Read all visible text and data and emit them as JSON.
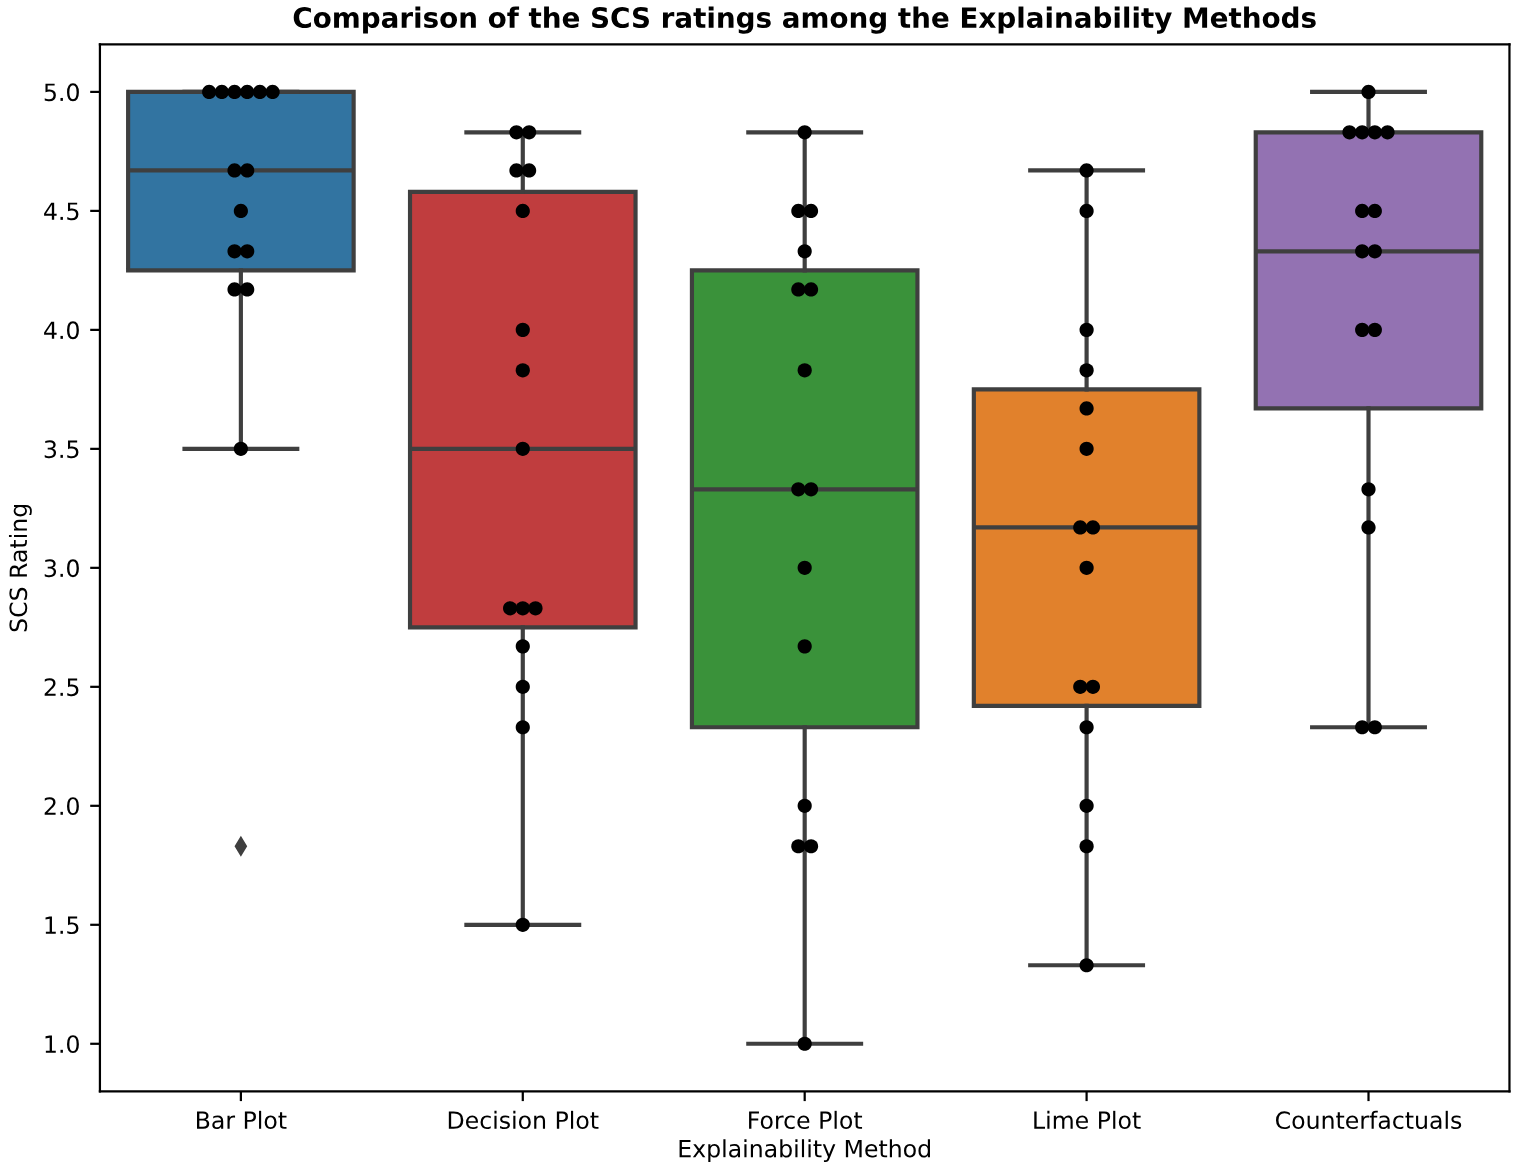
{
  "chart_data": {
    "type": "box",
    "title": "Comparison of the SCS ratings among the Explainability Methods",
    "xlabel": "Explainability Method",
    "ylabel": "SCS Rating",
    "categories": [
      "Bar Plot",
      "Decision Plot",
      "Force Plot",
      "Lime Plot",
      "Counterfactuals"
    ],
    "colors": [
      "#3274a1",
      "#c03d3e",
      "#3a923a",
      "#e1812c",
      "#9372b2"
    ],
    "boxes": [
      {
        "low": 3.5,
        "q1": 4.25,
        "median": 4.67,
        "q3": 5.0,
        "high": 5.0,
        "outliers": [
          1.83
        ]
      },
      {
        "low": 1.5,
        "q1": 2.75,
        "median": 3.5,
        "q3": 4.58,
        "high": 4.83
      },
      {
        "low": 1.0,
        "q1": 2.33,
        "median": 3.33,
        "q3": 4.25,
        "high": 4.83
      },
      {
        "low": 1.33,
        "q1": 2.42,
        "median": 3.17,
        "q3": 3.75,
        "high": 4.67
      },
      {
        "low": 2.33,
        "q1": 3.67,
        "median": 4.33,
        "q3": 4.83,
        "high": 5.0
      }
    ],
    "series": [
      {
        "type": "scatter",
        "color": "#000000",
        "x": [
          "Bar Plot",
          "Bar Plot",
          "Bar Plot",
          "Bar Plot",
          "Bar Plot",
          "Bar Plot",
          "Bar Plot",
          "Bar Plot",
          "Bar Plot",
          "Bar Plot",
          "Bar Plot",
          "Bar Plot",
          "Bar Plot",
          "Bar Plot",
          "Decision Plot",
          "Decision Plot",
          "Decision Plot",
          "Decision Plot",
          "Decision Plot",
          "Decision Plot",
          "Decision Plot",
          "Decision Plot",
          "Decision Plot",
          "Decision Plot",
          "Decision Plot",
          "Decision Plot",
          "Decision Plot",
          "Decision Plot",
          "Decision Plot",
          "Force Plot",
          "Force Plot",
          "Force Plot",
          "Force Plot",
          "Force Plot",
          "Force Plot",
          "Force Plot",
          "Force Plot",
          "Force Plot",
          "Force Plot",
          "Force Plot",
          "Force Plot",
          "Force Plot",
          "Force Plot",
          "Force Plot",
          "Lime Plot",
          "Lime Plot",
          "Lime Plot",
          "Lime Plot",
          "Lime Plot",
          "Lime Plot",
          "Lime Plot",
          "Lime Plot",
          "Lime Plot",
          "Lime Plot",
          "Lime Plot",
          "Lime Plot",
          "Lime Plot",
          "Lime Plot",
          "Lime Plot",
          "Counterfactuals",
          "Counterfactuals",
          "Counterfactuals",
          "Counterfactuals",
          "Counterfactuals",
          "Counterfactuals",
          "Counterfactuals",
          "Counterfactuals",
          "Counterfactuals",
          "Counterfactuals",
          "Counterfactuals",
          "Counterfactuals",
          "Counterfactuals",
          "Counterfactuals",
          "Counterfactuals"
        ],
        "values": [
          5.0,
          5.0,
          5.0,
          5.0,
          5.0,
          5.0,
          4.67,
          4.67,
          4.5,
          4.33,
          4.33,
          4.17,
          4.17,
          3.5,
          4.83,
          4.83,
          4.67,
          4.67,
          4.5,
          4.0,
          3.83,
          3.5,
          2.83,
          2.83,
          2.83,
          2.67,
          2.5,
          2.33,
          1.5,
          4.83,
          4.5,
          4.5,
          4.33,
          4.17,
          4.17,
          3.83,
          3.33,
          3.33,
          3.0,
          2.67,
          2.0,
          1.83,
          1.83,
          1.0,
          4.67,
          4.5,
          4.0,
          3.83,
          3.67,
          3.5,
          3.17,
          3.17,
          3.0,
          2.5,
          2.5,
          2.33,
          2.0,
          1.83,
          1.33,
          5.0,
          4.83,
          4.83,
          4.83,
          4.83,
          4.5,
          4.5,
          4.33,
          4.33,
          4.0,
          4.0,
          3.33,
          3.17,
          2.33,
          2.33
        ]
      }
    ],
    "ylim": [
      0.8,
      5.2
    ],
    "yticks": [
      {
        "value": 1,
        "label": "1.0"
      },
      1.5,
      {
        "value": 2,
        "label": "2.0"
      },
      2.5,
      {
        "value": 3,
        "label": "3.0"
      },
      3.5,
      {
        "value": 4,
        "label": "4.0"
      },
      4.5,
      {
        "value": 5,
        "label": "5.0"
      }
    ],
    "grid": false,
    "marker": "circle"
  }
}
